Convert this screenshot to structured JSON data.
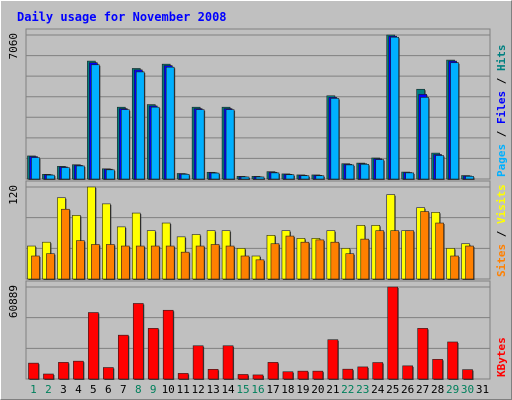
{
  "chart_data": {
    "type": "bar",
    "title": "Daily usage for November 2008",
    "categories": [
      "1",
      "2",
      "3",
      "4",
      "5",
      "6",
      "7",
      "8",
      "9",
      "10",
      "11",
      "12",
      "13",
      "14",
      "15",
      "16",
      "17",
      "18",
      "19",
      "20",
      "21",
      "22",
      "23",
      "24",
      "25",
      "26",
      "27",
      "28",
      "29",
      "30",
      "31"
    ],
    "weekend_days": [
      "1",
      "2",
      "8",
      "9",
      "15",
      "16",
      "22",
      "23",
      "29",
      "30"
    ],
    "panels": [
      {
        "name": "pages_files_hits",
        "max_label": "7060",
        "ylim": [
          0,
          7060
        ],
        "label_parts": [
          "Pages",
          "Files",
          "Hits"
        ],
        "series": [
          {
            "name": "Hits",
            "color": "#008080",
            "values": [
              1130,
              230,
              620,
              700,
              5780,
              500,
              3520,
              5420,
              3650,
              5630,
              270,
              3520,
              330,
              3520,
              130,
              130,
              360,
              250,
              200,
              200,
              4080,
              750,
              780,
              1030,
              7060,
              340,
              4400,
              1270,
              5830,
              170,
              0
            ]
          },
          {
            "name": "Files",
            "color": "#0000ff",
            "values": [
              1100,
              210,
              590,
              670,
              5700,
              480,
              3450,
              5350,
              3580,
              5560,
              250,
              3450,
              310,
              3450,
              110,
              110,
              330,
              230,
              180,
              180,
              4000,
              720,
              750,
              990,
              7000,
              320,
              4150,
              1200,
              5780,
              150,
              0
            ]
          },
          {
            "name": "Pages",
            "color": "#00b0ff",
            "values": [
              1050,
              190,
              560,
              640,
              5600,
              450,
              3400,
              5250,
              3520,
              5480,
              230,
              3400,
              290,
              3400,
              100,
              100,
              300,
              210,
              160,
              160,
              3950,
              690,
              720,
              950,
              6950,
              300,
              4000,
              1150,
              5700,
              130,
              0
            ]
          }
        ]
      },
      {
        "name": "sites_visits",
        "max_label": "120",
        "ylim": [
          0,
          120
        ],
        "label_parts": [
          "Sites",
          "Visits"
        ],
        "series": [
          {
            "name": "Visits",
            "color": "#ffff00",
            "values": [
              43,
              48,
              106,
              83,
              120,
              98,
              68,
              86,
              63,
              73,
              55,
              58,
              63,
              63,
              40,
              30,
              57,
              63,
              53,
              53,
              63,
              40,
              70,
              70,
              110,
              63,
              93,
              87,
              40,
              46,
              0
            ]
          },
          {
            "name": "Sites",
            "color": "#ff8000",
            "values": [
              30,
              33,
              91,
              50,
              45,
              45,
              43,
              43,
              43,
              43,
              35,
              43,
              45,
              43,
              30,
              25,
              46,
              56,
              48,
              51,
              48,
              33,
              52,
              63,
              63,
              63,
              88,
              73,
              30,
              43,
              0
            ]
          }
        ]
      },
      {
        "name": "kbytes",
        "max_label": "60889",
        "ylim": [
          0,
          60889
        ],
        "label_parts": [
          "KBytes"
        ],
        "series": [
          {
            "name": "KBytes",
            "color": "#ff0000",
            "values": [
              10500,
              3300,
              11000,
              11800,
              44000,
              7600,
              29000,
              50000,
              33500,
              45500,
              3700,
              22000,
              6400,
              22000,
              3000,
              2700,
              11000,
              4800,
              5200,
              5200,
              26000,
              6500,
              8000,
              10900,
              60889,
              8700,
              33500,
              13000,
              24500,
              6200,
              0
            ]
          }
        ]
      }
    ]
  },
  "colors": {
    "background": "#c0c0c0",
    "plot_background": "#c0c0c0",
    "grid": "#808080",
    "title": "#0000ff",
    "weekday_label": "#000000",
    "weekend_label": "#00805c",
    "axis_text": "#000000"
  }
}
